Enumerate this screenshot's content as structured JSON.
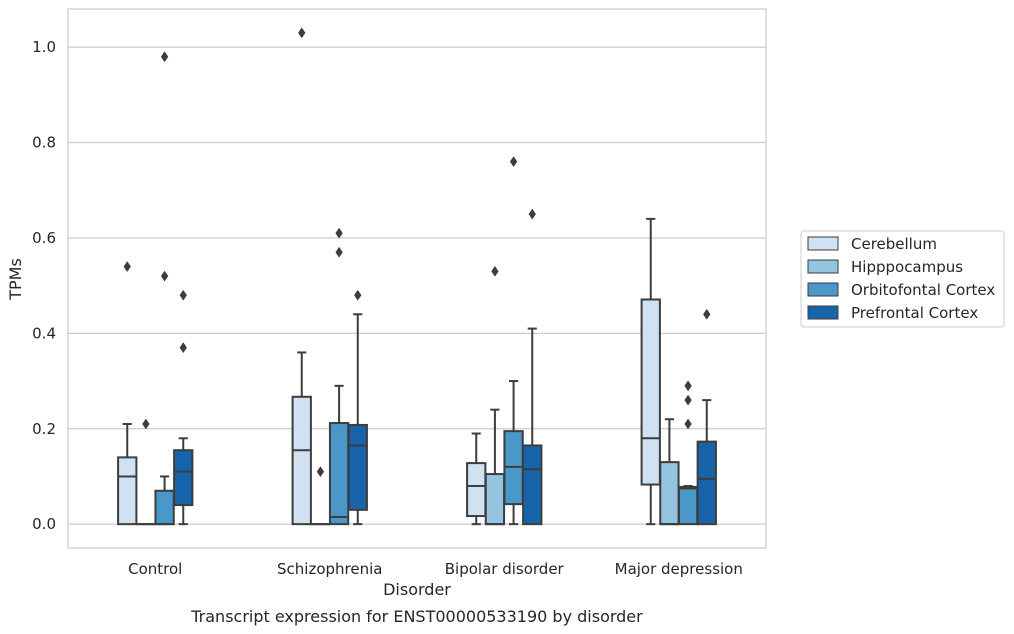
{
  "chart_data": {
    "type": "boxplot",
    "xlabel": "Disorder",
    "ylabel": "TPMs",
    "caption": "Transcript expression for ENST00000533190 by disorder",
    "ylim": [
      -0.05,
      1.08
    ],
    "yticks": [
      0.0,
      0.2,
      0.4,
      0.6,
      0.8,
      1.0
    ],
    "ytick_labels": [
      "0.0",
      "0.2",
      "0.4",
      "0.6",
      "0.8",
      "1.0"
    ],
    "grid": "horizontal",
    "legend_position": "right",
    "categories": [
      "Control",
      "Schizophrenia",
      "Bipolar disorder",
      "Major depression"
    ],
    "series": [
      {
        "name": "Cerebellum",
        "color": "#d0e1f2",
        "boxes": [
          {
            "q1": 0.0,
            "median": 0.1,
            "q3": 0.14,
            "whisker_low": 0.0,
            "whisker_high": 0.21,
            "outliers": [
              0.54
            ]
          },
          {
            "q1": 0.0,
            "median": 0.155,
            "q3": 0.267,
            "whisker_low": 0.0,
            "whisker_high": 0.36,
            "outliers": [
              1.03
            ]
          },
          {
            "q1": 0.017,
            "median": 0.08,
            "q3": 0.128,
            "whisker_low": 0.0,
            "whisker_high": 0.19,
            "outliers": []
          },
          {
            "q1": 0.083,
            "median": 0.18,
            "q3": 0.471,
            "whisker_low": 0.0,
            "whisker_high": 0.64,
            "outliers": []
          }
        ]
      },
      {
        "name": "Hipppocampus",
        "color": "#94c4df",
        "boxes": [
          {
            "q1": 0.0,
            "median": 0.0,
            "q3": 0.0,
            "whisker_low": 0.0,
            "whisker_high": 0.0,
            "outliers": [
              0.21
            ]
          },
          {
            "q1": 0.0,
            "median": 0.0,
            "q3": 0.0,
            "whisker_low": 0.0,
            "whisker_high": 0.0,
            "outliers": [
              0.11
            ]
          },
          {
            "q1": 0.0,
            "median": 0.0,
            "q3": 0.105,
            "whisker_low": 0.0,
            "whisker_high": 0.24,
            "outliers": [
              0.53
            ]
          },
          {
            "q1": 0.0,
            "median": 0.0,
            "q3": 0.13,
            "whisker_low": 0.0,
            "whisker_high": 0.22,
            "outliers": []
          }
        ]
      },
      {
        "name": "Orbitofontal Cortex",
        "color": "#4a98c9",
        "boxes": [
          {
            "q1": 0.0,
            "median": 0.0,
            "q3": 0.07,
            "whisker_low": 0.0,
            "whisker_high": 0.1,
            "outliers": [
              0.52,
              0.98
            ]
          },
          {
            "q1": 0.0,
            "median": 0.015,
            "q3": 0.212,
            "whisker_low": 0.0,
            "whisker_high": 0.29,
            "outliers": [
              0.57,
              0.61
            ]
          },
          {
            "q1": 0.042,
            "median": 0.12,
            "q3": 0.195,
            "whisker_low": 0.0,
            "whisker_high": 0.3,
            "outliers": [
              0.76
            ]
          },
          {
            "q1": 0.0,
            "median": 0.075,
            "q3": 0.078,
            "whisker_low": 0.0,
            "whisker_high": 0.08,
            "outliers": [
              0.21,
              0.26,
              0.29
            ]
          }
        ]
      },
      {
        "name": "Prefrontal Cortex",
        "color": "#1764ab",
        "boxes": [
          {
            "q1": 0.04,
            "median": 0.11,
            "q3": 0.155,
            "whisker_low": 0.0,
            "whisker_high": 0.18,
            "outliers": [
              0.37,
              0.48
            ]
          },
          {
            "q1": 0.03,
            "median": 0.165,
            "q3": 0.208,
            "whisker_low": 0.0,
            "whisker_high": 0.44,
            "outliers": [
              0.48
            ]
          },
          {
            "q1": 0.0,
            "median": 0.115,
            "q3": 0.165,
            "whisker_low": 0.0,
            "whisker_high": 0.41,
            "outliers": [
              0.65
            ]
          },
          {
            "q1": 0.0,
            "median": 0.095,
            "q3": 0.173,
            "whisker_low": 0.0,
            "whisker_high": 0.26,
            "outliers": [
              0.44
            ]
          }
        ]
      }
    ]
  }
}
